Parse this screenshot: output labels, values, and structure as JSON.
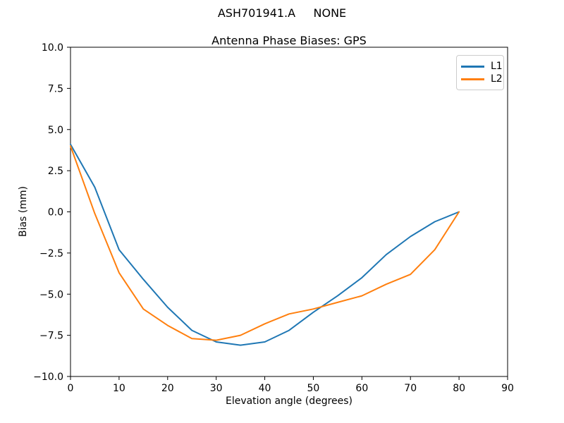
{
  "figure": {
    "suptitle": "ASH701941.A     NONE",
    "background": "#ffffff",
    "text_color": "#000000",
    "spine_color": "#000000",
    "legend_border_color": "#cccccc"
  },
  "chart_data": {
    "type": "line",
    "title": "Antenna Phase Biases: GPS",
    "xlabel": "Elevation angle (degrees)",
    "ylabel": "Bias (mm)",
    "xlim": [
      0,
      90
    ],
    "ylim": [
      -10,
      10
    ],
    "xticks": [
      0,
      10,
      20,
      30,
      40,
      50,
      60,
      70,
      80,
      90
    ],
    "xtick_labels": [
      "0",
      "10",
      "20",
      "30",
      "40",
      "50",
      "60",
      "70",
      "80",
      "90"
    ],
    "yticks": [
      10,
      7.5,
      5,
      2.5,
      0,
      -2.5,
      -5,
      -7.5,
      -10
    ],
    "ytick_labels": [
      "10.0",
      "7.5",
      "5.0",
      "2.5",
      "0.0",
      "−2.5",
      "−5.0",
      "−7.5",
      "−10.0"
    ],
    "grid": false,
    "legend": {
      "position": "upper right",
      "entries": [
        "L1",
        "L2"
      ]
    },
    "x": [
      0,
      5,
      10,
      15,
      20,
      25,
      30,
      35,
      40,
      45,
      50,
      55,
      60,
      65,
      70,
      75,
      80
    ],
    "series": [
      {
        "name": "L1",
        "color": "#1f77b4",
        "values": [
          4.1,
          1.5,
          -2.3,
          -4.1,
          -5.8,
          -7.2,
          -7.9,
          -8.1,
          -7.9,
          -7.2,
          -6.1,
          -5.1,
          -4.0,
          -2.6,
          -1.5,
          -0.6,
          0.0
        ]
      },
      {
        "name": "L2",
        "color": "#ff7f0e",
        "values": [
          4.0,
          -0.1,
          -3.7,
          -5.9,
          -6.9,
          -7.7,
          -7.8,
          -7.5,
          -6.8,
          -6.2,
          -5.9,
          -5.5,
          -5.1,
          -4.4,
          -3.8,
          -2.3,
          0.0
        ]
      }
    ]
  }
}
